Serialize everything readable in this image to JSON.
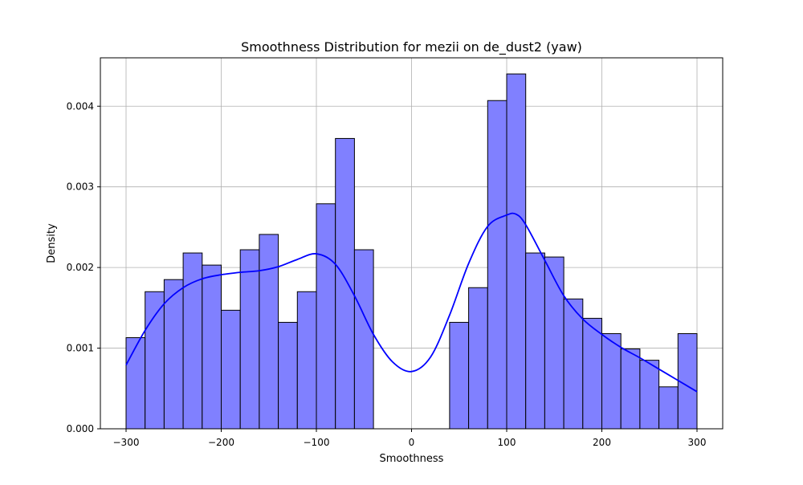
{
  "chart_data": {
    "type": "bar",
    "title": "Smoothness Distribution for mezii on de_dust2 (yaw)",
    "xlabel": "Smoothness",
    "ylabel": "Density",
    "xlim": [
      -327,
      327
    ],
    "ylim": [
      0,
      0.0046
    ],
    "xticks": [
      -300,
      -200,
      -100,
      0,
      100,
      200,
      300
    ],
    "xtick_labels": [
      "−300",
      "−200",
      "−100",
      "0",
      "100",
      "200",
      "300"
    ],
    "yticks": [
      0,
      0.001,
      0.002,
      0.003,
      0.004
    ],
    "ytick_labels": [
      "0.000",
      "0.001",
      "0.002",
      "0.003",
      "0.004"
    ],
    "grid": true,
    "bar_fill": "#8080ff",
    "bar_edge": "#000000",
    "kde_color": "#0000ff",
    "bins": [
      {
        "x0": -300,
        "x1": -280,
        "density": 0.00113
      },
      {
        "x0": -280,
        "x1": -260,
        "density": 0.0017
      },
      {
        "x0": -260,
        "x1": -240,
        "density": 0.00185
      },
      {
        "x0": -240,
        "x1": -220,
        "density": 0.00218
      },
      {
        "x0": -220,
        "x1": -200,
        "density": 0.00203
      },
      {
        "x0": -200,
        "x1": -180,
        "density": 0.00147
      },
      {
        "x0": -180,
        "x1": -160,
        "density": 0.00222
      },
      {
        "x0": -160,
        "x1": -140,
        "density": 0.00241
      },
      {
        "x0": -140,
        "x1": -120,
        "density": 0.00132
      },
      {
        "x0": -120,
        "x1": -100,
        "density": 0.0017
      },
      {
        "x0": -100,
        "x1": -80,
        "density": 0.00279
      },
      {
        "x0": -80,
        "x1": -60,
        "density": 0.0036
      },
      {
        "x0": -60,
        "x1": -40,
        "density": 0.00222
      },
      {
        "x0": -40,
        "x1": -20,
        "density": 0
      },
      {
        "x0": -20,
        "x1": 0,
        "density": 0
      },
      {
        "x0": 0,
        "x1": 20,
        "density": 0
      },
      {
        "x0": 20,
        "x1": 40,
        "density": 0
      },
      {
        "x0": 40,
        "x1": 60,
        "density": 0.00132
      },
      {
        "x0": 60,
        "x1": 80,
        "density": 0.00175
      },
      {
        "x0": 80,
        "x1": 100,
        "density": 0.00407
      },
      {
        "x0": 100,
        "x1": 120,
        "density": 0.0044
      },
      {
        "x0": 120,
        "x1": 140,
        "density": 0.00218
      },
      {
        "x0": 140,
        "x1": 160,
        "density": 0.00213
      },
      {
        "x0": 160,
        "x1": 180,
        "density": 0.00161
      },
      {
        "x0": 180,
        "x1": 200,
        "density": 0.00137
      },
      {
        "x0": 200,
        "x1": 220,
        "density": 0.00118
      },
      {
        "x0": 220,
        "x1": 240,
        "density": 0.00099
      },
      {
        "x0": 240,
        "x1": 260,
        "density": 0.00085
      },
      {
        "x0": 260,
        "x1": 280,
        "density": 0.00052
      },
      {
        "x0": 280,
        "x1": 300,
        "density": 0.00118
      }
    ],
    "kde": {
      "x": [
        -300,
        -280,
        -260,
        -240,
        -220,
        -200,
        -180,
        -160,
        -140,
        -120,
        -100,
        -80,
        -60,
        -40,
        -20,
        0,
        20,
        40,
        60,
        80,
        100,
        110,
        120,
        140,
        160,
        180,
        200,
        220,
        240,
        260,
        280,
        300
      ],
      "y": [
        0.00079,
        0.00122,
        0.00155,
        0.00175,
        0.00186,
        0.00191,
        0.00194,
        0.00196,
        0.00201,
        0.0021,
        0.00217,
        0.00204,
        0.00165,
        0.00117,
        0.00083,
        0.00071,
        0.00089,
        0.00141,
        0.00205,
        0.00251,
        0.00265,
        0.00266,
        0.00253,
        0.00209,
        0.00165,
        0.00136,
        0.00117,
        0.00101,
        0.00088,
        0.00074,
        0.0006,
        0.00046
      ]
    }
  }
}
